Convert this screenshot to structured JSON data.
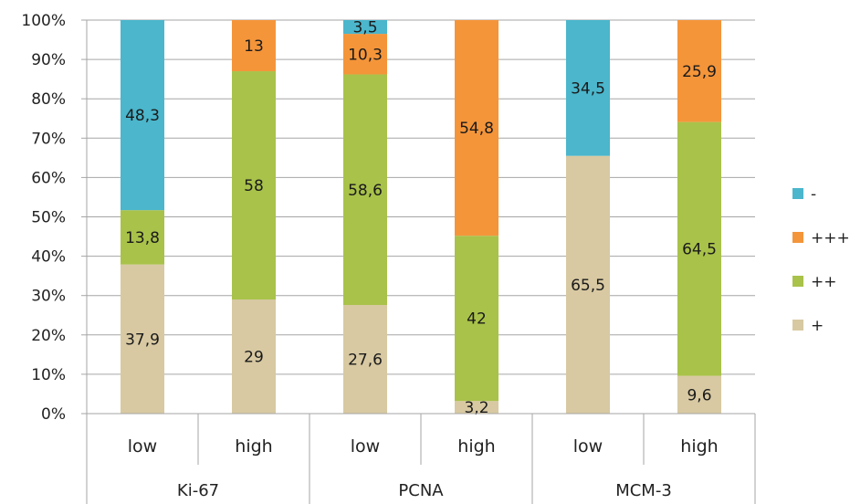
{
  "chart_data": {
    "type": "bar",
    "stacked": true,
    "normalized_percent": true,
    "categories": [
      "low",
      "high",
      "low",
      "high",
      "low",
      "high"
    ],
    "groups": [
      {
        "label": "Ki-67",
        "categories": [
          "low",
          "high"
        ]
      },
      {
        "label": "PCNA",
        "categories": [
          "low",
          "high"
        ]
      },
      {
        "label": "MCM-3",
        "categories": [
          "low",
          "high"
        ]
      }
    ],
    "series": [
      {
        "name": "+",
        "color": "#d8c9a2",
        "values": [
          37.9,
          29,
          27.6,
          3.2,
          65.5,
          9.6
        ],
        "labels": [
          "37,9",
          "29",
          "27,6",
          "3,2",
          "65,5",
          "9,6"
        ]
      },
      {
        "name": "++",
        "color": "#a9c24a",
        "values": [
          13.8,
          58,
          58.6,
          42,
          0,
          64.5
        ],
        "labels": [
          "13,8",
          "58",
          "58,6",
          "42",
          "",
          "64,5"
        ]
      },
      {
        "name": "+++",
        "color": "#f4953a",
        "values": [
          0,
          13,
          10.3,
          54.8,
          0,
          25.9
        ],
        "labels": [
          "",
          "13",
          "10,3",
          "54,8",
          "",
          "25,9"
        ]
      },
      {
        "name": "-",
        "color": "#4bb6cc",
        "values": [
          48.3,
          0,
          3.5,
          0,
          34.5,
          0
        ],
        "labels": [
          "48,3",
          "",
          "3,5",
          "",
          "34,5",
          ""
        ]
      }
    ],
    "legend_order": [
      "-",
      "+++",
      "++",
      "+"
    ],
    "legend_position": "right",
    "ylim": [
      0,
      100
    ],
    "yticks": [
      "0%",
      "10%",
      "20%",
      "30%",
      "40%",
      "50%",
      "60%",
      "70%",
      "80%",
      "90%",
      "100%"
    ],
    "grid": true,
    "title": "",
    "xlabel": "",
    "ylabel": ""
  }
}
